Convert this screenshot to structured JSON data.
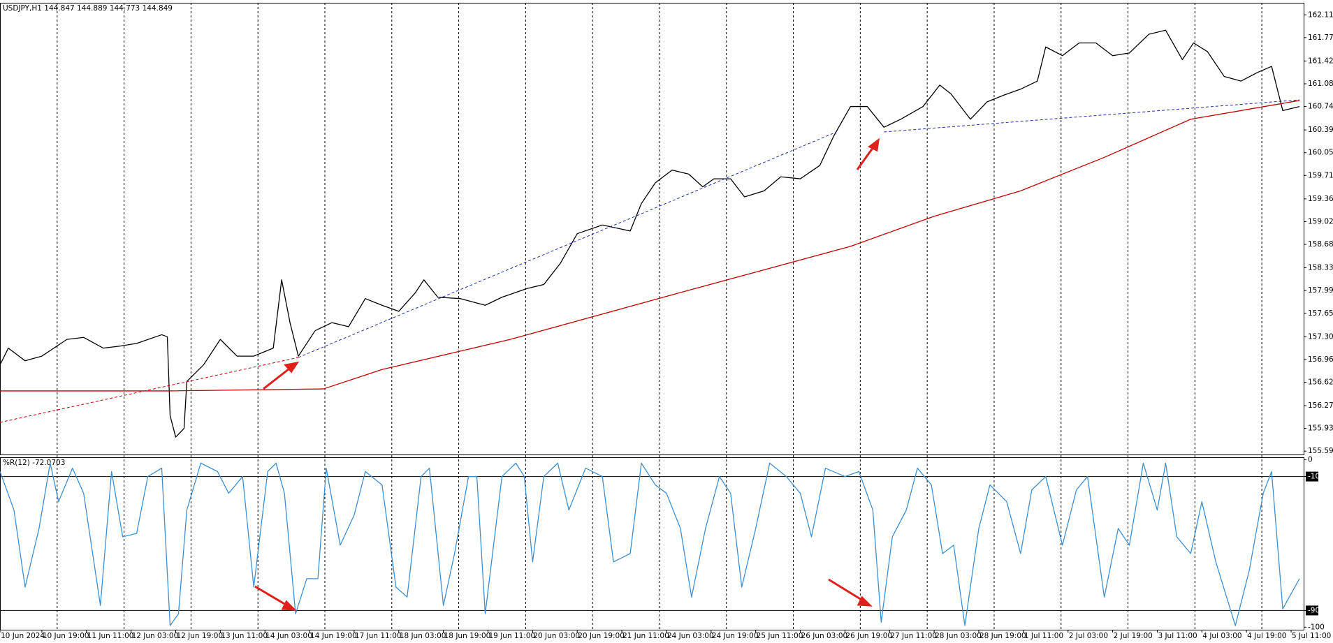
{
  "chart_data": [
    {
      "type": "line",
      "title": "USDJPY,H1  144.847 144.889 144.773 144.849",
      "xlim": [
        0,
        467.5
      ],
      "ylim": [
        155.54,
        162.29
      ],
      "yticks": [
        {
          "value": 162.11,
          "label": "162.110"
        },
        {
          "value": 161.77,
          "label": "161.770"
        },
        {
          "value": 161.42,
          "label": "161.420"
        },
        {
          "value": 161.08,
          "label": "161.080"
        },
        {
          "value": 160.74,
          "label": "160.740"
        },
        {
          "value": 160.39,
          "label": "160.390"
        },
        {
          "value": 160.05,
          "label": "160.050"
        },
        {
          "value": 159.71,
          "label": "159.710"
        },
        {
          "value": 159.36,
          "label": "159.360"
        },
        {
          "value": 159.02,
          "label": "159.020"
        },
        {
          "value": 158.68,
          "label": "158.680"
        },
        {
          "value": 158.33,
          "label": "158.330"
        },
        {
          "value": 157.99,
          "label": "157.990"
        },
        {
          "value": 157.65,
          "label": "157.650"
        },
        {
          "value": 157.3,
          "label": "157.300"
        },
        {
          "value": 156.96,
          "label": "156.960"
        },
        {
          "value": 156.62,
          "label": "156.620"
        },
        {
          "value": 156.27,
          "label": "156.270"
        },
        {
          "value": 155.93,
          "label": "155.930"
        },
        {
          "value": 155.59,
          "label": "155.590"
        }
      ],
      "series": [
        {
          "color": "#000000",
          "dashed": false,
          "x": [
            0,
            3,
            9,
            15,
            24,
            30,
            37,
            43,
            49,
            58,
            60,
            61,
            63,
            66,
            67,
            73,
            79,
            85,
            91,
            98,
            101,
            104,
            107,
            113,
            119,
            125,
            131,
            137,
            143,
            149,
            152,
            157,
            165,
            174,
            180,
            189,
            195,
            201,
            207,
            216,
            226,
            230,
            235,
            241,
            247,
            252,
            256,
            262,
            267,
            274,
            280,
            287,
            294,
            299,
            305,
            311,
            317,
            323,
            331,
            337,
            341,
            348,
            354,
            360,
            366,
            372,
            375,
            381,
            387,
            393,
            399,
            405,
            412,
            418,
            424,
            428,
            433,
            439,
            445,
            451,
            456,
            460,
            466
          ],
          "values": [
            156.88,
            157.13,
            156.94,
            157.01,
            157.26,
            157.29,
            157.13,
            157.16,
            157.2,
            157.33,
            157.3,
            156.12,
            155.8,
            155.93,
            156.63,
            156.88,
            157.26,
            157.01,
            157.01,
            157.13,
            158.15,
            157.51,
            157.01,
            157.39,
            157.51,
            157.45,
            157.87,
            157.77,
            157.68,
            157.96,
            158.15,
            157.89,
            157.87,
            157.77,
            157.89,
            158.02,
            158.08,
            158.4,
            158.84,
            158.97,
            158.88,
            159.29,
            159.6,
            159.79,
            159.73,
            159.54,
            159.66,
            159.66,
            159.39,
            159.48,
            159.69,
            159.66,
            159.86,
            160.3,
            160.74,
            160.74,
            160.43,
            160.55,
            160.74,
            161.06,
            160.93,
            160.55,
            160.81,
            160.91,
            161.0,
            161.12,
            161.63,
            161.5,
            161.69,
            161.69,
            161.5,
            161.54,
            161.82,
            161.88,
            161.44,
            161.69,
            161.56,
            161.19,
            161.12,
            161.25,
            161.34,
            160.68,
            160.74
          ]
        },
        {
          "color": "#c00000",
          "dashed": false,
          "x": [
            0,
            60,
            116,
            137,
            183,
            244,
            305,
            335,
            366,
            396,
            427,
            466
          ],
          "values": [
            156.49,
            156.49,
            156.52,
            156.81,
            157.26,
            157.96,
            158.65,
            159.1,
            159.48,
            159.98,
            160.55,
            160.83
          ]
        },
        {
          "color": "#c00000",
          "dashed": true,
          "x": [
            0,
            107
          ],
          "values": [
            156.02,
            156.99
          ]
        },
        {
          "color": "#1f2fa8",
          "dashed": true,
          "x": [
            107,
            300
          ],
          "values": [
            156.99,
            160.36
          ]
        },
        {
          "color": "#1f2fa8",
          "dashed": true,
          "x": [
            317,
            466
          ],
          "values": [
            160.36,
            160.84
          ]
        }
      ]
    },
    {
      "type": "line",
      "title": "%R(12) -72.0703",
      "xlim": [
        0,
        467.5
      ],
      "ylim": [
        -101.5,
        1.5
      ],
      "yticks": [
        0,
        -10,
        -90,
        -100
      ],
      "levels": [
        -10,
        -90
      ],
      "xticks": [
        {
          "value": 0,
          "label": "10 Jun 2024"
        },
        {
          "value": 15,
          "label": "10 Jun 19:00"
        },
        {
          "value": 31,
          "label": "11 Jun 11:00"
        },
        {
          "value": 47,
          "label": "12 Jun 03:00"
        },
        {
          "value": 63,
          "label": "12 Jun 19:00"
        },
        {
          "value": 79,
          "label": "13 Jun 11:00"
        },
        {
          "value": 95,
          "label": "14 Jun 03:00"
        },
        {
          "value": 111,
          "label": "14 Jun 19:00"
        },
        {
          "value": 127,
          "label": "17 Jun 11:00"
        },
        {
          "value": 143,
          "label": "18 Jun 03:00"
        },
        {
          "value": 159,
          "label": "18 Jun 19:00"
        },
        {
          "value": 175,
          "label": "19 Jun 11:00"
        },
        {
          "value": 191,
          "label": "20 Jun 03:00"
        },
        {
          "value": 207,
          "label": "20 Jun 19:00"
        },
        {
          "value": 223,
          "label": "21 Jun 11:00"
        },
        {
          "value": 239,
          "label": "24 Jun 03:00"
        },
        {
          "value": 255,
          "label": "24 Jun 19:00"
        },
        {
          "value": 271,
          "label": "25 Jun 11:00"
        },
        {
          "value": 287,
          "label": "26 Jun 03:00"
        },
        {
          "value": 303,
          "label": "26 Jun 19:00"
        },
        {
          "value": 319,
          "label": "27 Jun 11:00"
        },
        {
          "value": 335,
          "label": "28 Jun 03:00"
        },
        {
          "value": 351,
          "label": "28 Jun 19:00"
        },
        {
          "value": 367,
          "label": "1 Jul 11:00"
        },
        {
          "value": 383,
          "label": "2 Jul 03:00"
        },
        {
          "value": 399,
          "label": "2 Jul 19:00"
        },
        {
          "value": 415,
          "label": "3 Jul 11:00"
        },
        {
          "value": 431,
          "label": "4 Jul 03:00"
        },
        {
          "value": 447,
          "label": "4 Jul 19:00"
        },
        {
          "value": 463,
          "label": "5 Jul 11:00"
        }
      ],
      "series": [
        {
          "color": "#3d8fd1",
          "dashed": false,
          "x": [
            0,
            5,
            9,
            14,
            18,
            21,
            26,
            30,
            36,
            40,
            44,
            49,
            53,
            58,
            61,
            64,
            67,
            72,
            78,
            82,
            87,
            91,
            96,
            99,
            102,
            106,
            110,
            114,
            117,
            122,
            127,
            131,
            137,
            142,
            146,
            151,
            154,
            159,
            163,
            168,
            171,
            174,
            180,
            185,
            188,
            191,
            195,
            200,
            204,
            210,
            216,
            220,
            226,
            230,
            235,
            239,
            244,
            248,
            253,
            258,
            262,
            266,
            271,
            276,
            282,
            287,
            291,
            296,
            303,
            308,
            313,
            316,
            320,
            325,
            329,
            334,
            338,
            342,
            346,
            351,
            355,
            361,
            366,
            370,
            375,
            381,
            386,
            390,
            396,
            401,
            405,
            410,
            415,
            418,
            422,
            427,
            431,
            436,
            443,
            448,
            453,
            456,
            460,
            466
          ],
          "values": [
            -7,
            -30,
            -76,
            -41,
            -2,
            -25,
            -5,
            -20,
            -87,
            -7,
            -46,
            -44,
            -10,
            -5,
            -99,
            -92,
            -30,
            -2,
            -7,
            -20,
            -10,
            -76,
            -7,
            -2,
            -20,
            -92,
            -71,
            -71,
            -5,
            -51,
            -33,
            -7,
            -15,
            -76,
            -82,
            -10,
            -5,
            -87,
            -56,
            -10,
            -10,
            -92,
            -10,
            -2,
            -10,
            -61,
            -10,
            -2,
            -30,
            -5,
            -10,
            -61,
            -56,
            -2,
            -15,
            -20,
            -41,
            -82,
            -41,
            -10,
            -20,
            -76,
            -41,
            -2,
            -10,
            -20,
            -46,
            -5,
            -10,
            -7,
            -30,
            -97,
            -46,
            -30,
            -5,
            -15,
            -56,
            -51,
            -99,
            -41,
            -15,
            -25,
            -56,
            -18,
            -10,
            -51,
            -18,
            -10,
            -82,
            -41,
            -51,
            -2,
            -30,
            -2,
            -46,
            -56,
            -25,
            -61,
            -99,
            -66,
            -20,
            -7,
            -89,
            -71
          ]
        }
      ]
    }
  ]
}
